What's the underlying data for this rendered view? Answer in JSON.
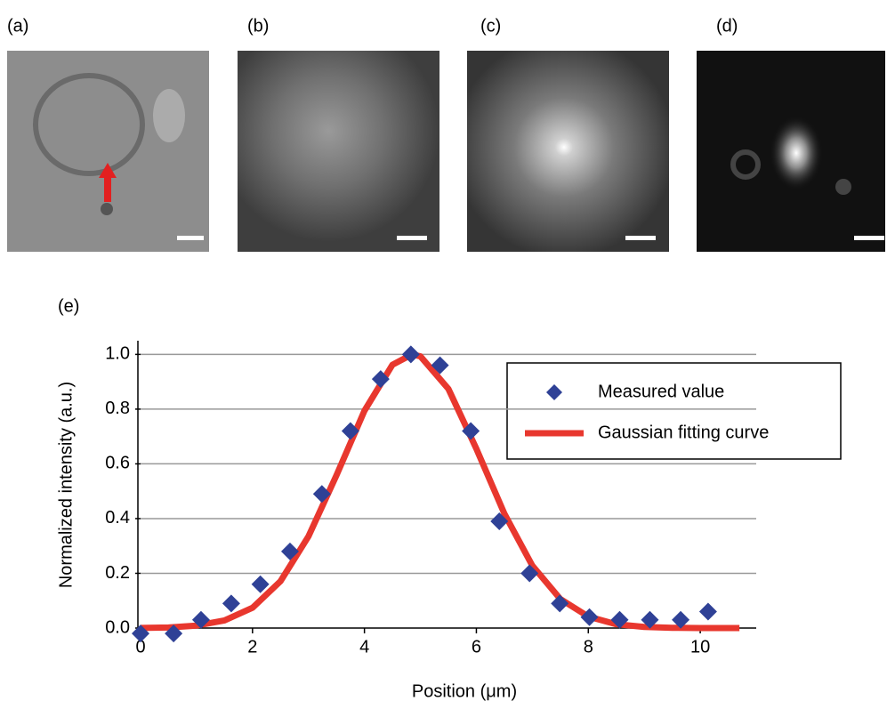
{
  "panel_labels": [
    "(a)",
    "(b)",
    "(c)",
    "(d)",
    "(e)"
  ],
  "chart_data": {
    "type": "scatter",
    "xlabel": "Position (μm)",
    "ylabel": "Normalized intensity (a.u.)",
    "xlim": [
      0,
      11
    ],
    "ylim": [
      0,
      1.05
    ],
    "xticks": [
      0,
      2,
      4,
      6,
      8,
      10
    ],
    "yticks": [
      {
        "value": 0,
        "label": "0.0"
      },
      {
        "value": 0.2,
        "label": "0.2"
      },
      {
        "value": 0.4,
        "label": "0.4"
      },
      {
        "value": 0.6,
        "label": "0.6"
      },
      {
        "value": 0.8,
        "label": "0.8"
      },
      {
        "value": 1,
        "label": "1.0"
      }
    ],
    "grid": true,
    "legend": "upper right",
    "series": [
      {
        "name": "Measured value",
        "type": "scatter",
        "color": "#2f4196",
        "x": [
          0,
          0.59,
          1.08,
          1.62,
          2.14,
          2.67,
          3.24,
          3.75,
          4.29,
          4.83,
          5.35,
          5.9,
          6.41,
          6.95,
          7.49,
          8.02,
          8.56,
          9.1,
          9.65,
          10.14
        ],
        "values": [
          -0.02,
          -0.02,
          0.03,
          0.09,
          0.16,
          0.28,
          0.49,
          0.72,
          0.91,
          1.0,
          0.96,
          0.72,
          0.39,
          0.2,
          0.09,
          0.04,
          0.03,
          0.03,
          0.03,
          0.06
        ]
      },
      {
        "name": "Gaussian fitting curve",
        "type": "line",
        "color": "#e8372e",
        "x": [
          0,
          0.5,
          1,
          1.5,
          2,
          2.5,
          3,
          3.5,
          4,
          4.5,
          4.85,
          5,
          5.5,
          6,
          6.5,
          7,
          7.5,
          8,
          8.5,
          9,
          9.5,
          10,
          10.5,
          10.7
        ],
        "values": [
          0.0005,
          0.002,
          0.009,
          0.028,
          0.074,
          0.171,
          0.335,
          0.558,
          0.794,
          0.962,
          1.0,
          0.993,
          0.874,
          0.655,
          0.418,
          0.228,
          0.106,
          0.042,
          0.014,
          0.004,
          0.001,
          0,
          0,
          0
        ]
      }
    ]
  }
}
